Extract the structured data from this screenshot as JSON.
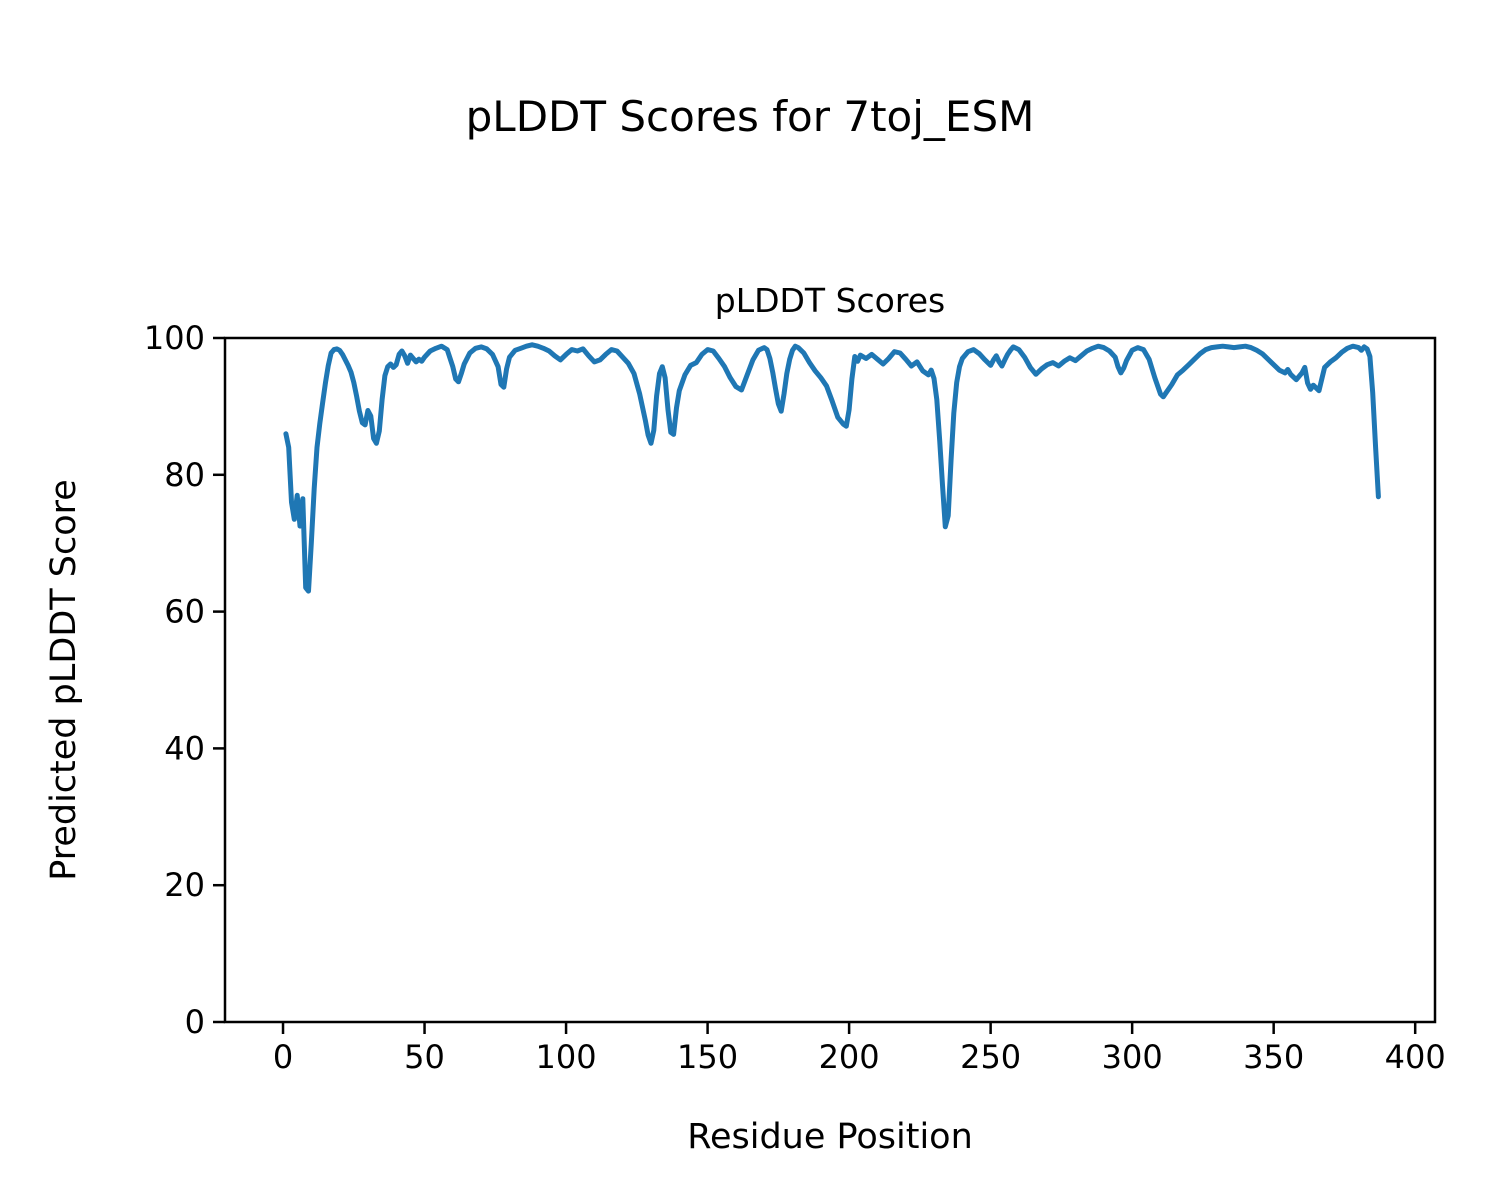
{
  "chart_data": {
    "type": "line",
    "suptitle": "pLDDT Scores for 7toj_ESM",
    "title": "pLDDT Scores",
    "xlabel": "Residue Position",
    "ylabel": "Predicted pLDDT Score",
    "xlim": [
      -20.5,
      407
    ],
    "ylim": [
      0,
      100
    ],
    "xticks": [
      0,
      50,
      100,
      150,
      200,
      250,
      300,
      350,
      400
    ],
    "yticks": [
      0,
      20,
      40,
      60,
      80,
      100
    ],
    "grid": false,
    "legend": "none",
    "line_color": "#1f77b4",
    "line_width": 5,
    "series_name": "pLDDT",
    "points": [
      [
        1,
        86
      ],
      [
        2,
        84
      ],
      [
        3,
        76
      ],
      [
        4,
        73.5
      ],
      [
        5,
        77
      ],
      [
        6,
        72.5
      ],
      [
        7,
        76.5
      ],
      [
        8,
        63.5
      ],
      [
        9,
        63
      ],
      [
        10,
        70
      ],
      [
        11,
        78
      ],
      [
        12,
        84
      ],
      [
        13,
        87.5
      ],
      [
        14,
        90.5
      ],
      [
        15,
        93.5
      ],
      [
        16,
        96
      ],
      [
        17,
        97.8
      ],
      [
        18,
        98.3
      ],
      [
        19,
        98.4
      ],
      [
        20,
        98.2
      ],
      [
        21,
        97.6
      ],
      [
        22,
        96.8
      ],
      [
        23,
        96
      ],
      [
        24,
        95
      ],
      [
        25,
        93.5
      ],
      [
        26,
        91.5
      ],
      [
        27,
        89.3
      ],
      [
        28,
        87.6
      ],
      [
        29,
        87.3
      ],
      [
        30,
        89.4
      ],
      [
        31,
        88.6
      ],
      [
        32,
        85.3
      ],
      [
        33,
        84.6
      ],
      [
        34,
        86.4
      ],
      [
        35,
        91
      ],
      [
        36,
        94.5
      ],
      [
        37,
        95.8
      ],
      [
        38,
        96.2
      ],
      [
        39,
        95.7
      ],
      [
        40,
        96.1
      ],
      [
        41,
        97.6
      ],
      [
        42,
        98.1
      ],
      [
        43,
        97.4
      ],
      [
        44,
        96.3
      ],
      [
        45,
        97.5
      ],
      [
        46,
        97
      ],
      [
        47,
        96.5
      ],
      [
        48,
        96.9
      ],
      [
        49,
        96.6
      ],
      [
        50,
        97.2
      ],
      [
        52,
        98.1
      ],
      [
        54,
        98.5
      ],
      [
        56,
        98.8
      ],
      [
        58,
        98.3
      ],
      [
        60,
        95.8
      ],
      [
        61,
        94
      ],
      [
        62,
        93.6
      ],
      [
        63,
        94.8
      ],
      [
        64,
        96.2
      ],
      [
        66,
        97.8
      ],
      [
        68,
        98.5
      ],
      [
        70,
        98.7
      ],
      [
        72,
        98.4
      ],
      [
        74,
        97.6
      ],
      [
        76,
        95.8
      ],
      [
        77,
        93.2
      ],
      [
        78,
        92.8
      ],
      [
        79,
        95.5
      ],
      [
        80,
        97.2
      ],
      [
        82,
        98.2
      ],
      [
        84,
        98.5
      ],
      [
        86,
        98.8
      ],
      [
        88,
        99
      ],
      [
        90,
        98.8
      ],
      [
        92,
        98.5
      ],
      [
        94,
        98.1
      ],
      [
        96,
        97.4
      ],
      [
        98,
        96.8
      ],
      [
        100,
        97.6
      ],
      [
        102,
        98.3
      ],
      [
        104,
        98.1
      ],
      [
        106,
        98.4
      ],
      [
        108,
        97.4
      ],
      [
        110,
        96.5
      ],
      [
        112,
        96.8
      ],
      [
        114,
        97.6
      ],
      [
        116,
        98.3
      ],
      [
        118,
        98.1
      ],
      [
        120,
        97.2
      ],
      [
        122,
        96.3
      ],
      [
        124,
        94.8
      ],
      [
        126,
        91.8
      ],
      [
        128,
        88
      ],
      [
        129,
        85.8
      ],
      [
        130,
        84.6
      ],
      [
        131,
        86.5
      ],
      [
        132,
        91.5
      ],
      [
        133,
        94.8
      ],
      [
        134,
        95.8
      ],
      [
        135,
        94.2
      ],
      [
        136,
        89.5
      ],
      [
        137,
        86.2
      ],
      [
        138,
        85.9
      ],
      [
        139,
        89.8
      ],
      [
        140,
        92.3
      ],
      [
        142,
        94.6
      ],
      [
        144,
        96
      ],
      [
        146,
        96.4
      ],
      [
        148,
        97.6
      ],
      [
        150,
        98.3
      ],
      [
        152,
        98.1
      ],
      [
        154,
        97
      ],
      [
        156,
        95.8
      ],
      [
        158,
        94.2
      ],
      [
        160,
        92.9
      ],
      [
        162,
        92.4
      ],
      [
        164,
        94.6
      ],
      [
        166,
        96.8
      ],
      [
        168,
        98.2
      ],
      [
        170,
        98.6
      ],
      [
        171,
        98.3
      ],
      [
        172,
        97
      ],
      [
        173,
        95
      ],
      [
        174,
        92.6
      ],
      [
        175,
        90.4
      ],
      [
        176,
        89.3
      ],
      [
        177,
        91.8
      ],
      [
        178,
        94.8
      ],
      [
        179,
        96.9
      ],
      [
        180,
        98.2
      ],
      [
        181,
        98.8
      ],
      [
        182,
        98.6
      ],
      [
        184,
        97.8
      ],
      [
        186,
        96.4
      ],
      [
        188,
        95.2
      ],
      [
        190,
        94.2
      ],
      [
        192,
        93
      ],
      [
        194,
        90.8
      ],
      [
        196,
        88.4
      ],
      [
        198,
        87.4
      ],
      [
        199,
        87.1
      ],
      [
        200,
        89.5
      ],
      [
        201,
        94
      ],
      [
        202,
        97.3
      ],
      [
        203,
        96.6
      ],
      [
        204,
        97.5
      ],
      [
        206,
        97
      ],
      [
        208,
        97.6
      ],
      [
        210,
        96.9
      ],
      [
        212,
        96.2
      ],
      [
        214,
        97
      ],
      [
        216,
        98
      ],
      [
        218,
        97.8
      ],
      [
        220,
        96.9
      ],
      [
        222,
        95.9
      ],
      [
        224,
        96.5
      ],
      [
        226,
        95.2
      ],
      [
        228,
        94.6
      ],
      [
        229,
        95.3
      ],
      [
        230,
        94.1
      ],
      [
        231,
        91
      ],
      [
        232,
        85
      ],
      [
        233,
        78.5
      ],
      [
        234,
        72.4
      ],
      [
        235,
        74
      ],
      [
        236,
        82
      ],
      [
        237,
        89
      ],
      [
        238,
        93.5
      ],
      [
        239,
        95.8
      ],
      [
        240,
        97
      ],
      [
        242,
        98
      ],
      [
        244,
        98.3
      ],
      [
        246,
        97.7
      ],
      [
        248,
        96.8
      ],
      [
        250,
        96
      ],
      [
        251,
        96.8
      ],
      [
        252,
        97.4
      ],
      [
        253,
        96.5
      ],
      [
        254,
        95.9
      ],
      [
        255,
        96.8
      ],
      [
        256,
        97.6
      ],
      [
        257,
        98.2
      ],
      [
        258,
        98.7
      ],
      [
        260,
        98.3
      ],
      [
        262,
        97.2
      ],
      [
        264,
        95.7
      ],
      [
        266,
        94.7
      ],
      [
        268,
        95.5
      ],
      [
        270,
        96.1
      ],
      [
        272,
        96.4
      ],
      [
        274,
        95.9
      ],
      [
        276,
        96.6
      ],
      [
        278,
        97.1
      ],
      [
        280,
        96.7
      ],
      [
        282,
        97.4
      ],
      [
        284,
        98.1
      ],
      [
        286,
        98.5
      ],
      [
        288,
        98.8
      ],
      [
        290,
        98.6
      ],
      [
        292,
        98.1
      ],
      [
        294,
        97.2
      ],
      [
        295,
        95.8
      ],
      [
        296,
        94.9
      ],
      [
        297,
        95.6
      ],
      [
        298,
        96.7
      ],
      [
        300,
        98.2
      ],
      [
        302,
        98.6
      ],
      [
        304,
        98.3
      ],
      [
        306,
        96.9
      ],
      [
        308,
        94.2
      ],
      [
        310,
        91.8
      ],
      [
        311,
        91.4
      ],
      [
        312,
        92
      ],
      [
        314,
        93.2
      ],
      [
        316,
        94.6
      ],
      [
        318,
        95.3
      ],
      [
        320,
        96.1
      ],
      [
        322,
        96.9
      ],
      [
        324,
        97.7
      ],
      [
        326,
        98.3
      ],
      [
        328,
        98.6
      ],
      [
        330,
        98.7
      ],
      [
        332,
        98.8
      ],
      [
        334,
        98.7
      ],
      [
        336,
        98.6
      ],
      [
        338,
        98.7
      ],
      [
        340,
        98.8
      ],
      [
        342,
        98.6
      ],
      [
        344,
        98.2
      ],
      [
        346,
        97.7
      ],
      [
        348,
        96.9
      ],
      [
        350,
        96.1
      ],
      [
        352,
        95.3
      ],
      [
        354,
        94.9
      ],
      [
        355,
        95.4
      ],
      [
        356,
        94.7
      ],
      [
        358,
        93.9
      ],
      [
        360,
        94.9
      ],
      [
        361,
        95.7
      ],
      [
        362,
        93.4
      ],
      [
        363,
        92.5
      ],
      [
        364,
        93.1
      ],
      [
        366,
        92.3
      ],
      [
        367,
        94
      ],
      [
        368,
        95.7
      ],
      [
        370,
        96.5
      ],
      [
        372,
        97.1
      ],
      [
        374,
        97.9
      ],
      [
        376,
        98.5
      ],
      [
        378,
        98.8
      ],
      [
        380,
        98.6
      ],
      [
        381,
        98.2
      ],
      [
        382,
        98.7
      ],
      [
        383,
        98.4
      ],
      [
        384,
        97.3
      ],
      [
        385,
        92
      ],
      [
        386,
        84
      ],
      [
        387,
        76.8
      ]
    ]
  }
}
